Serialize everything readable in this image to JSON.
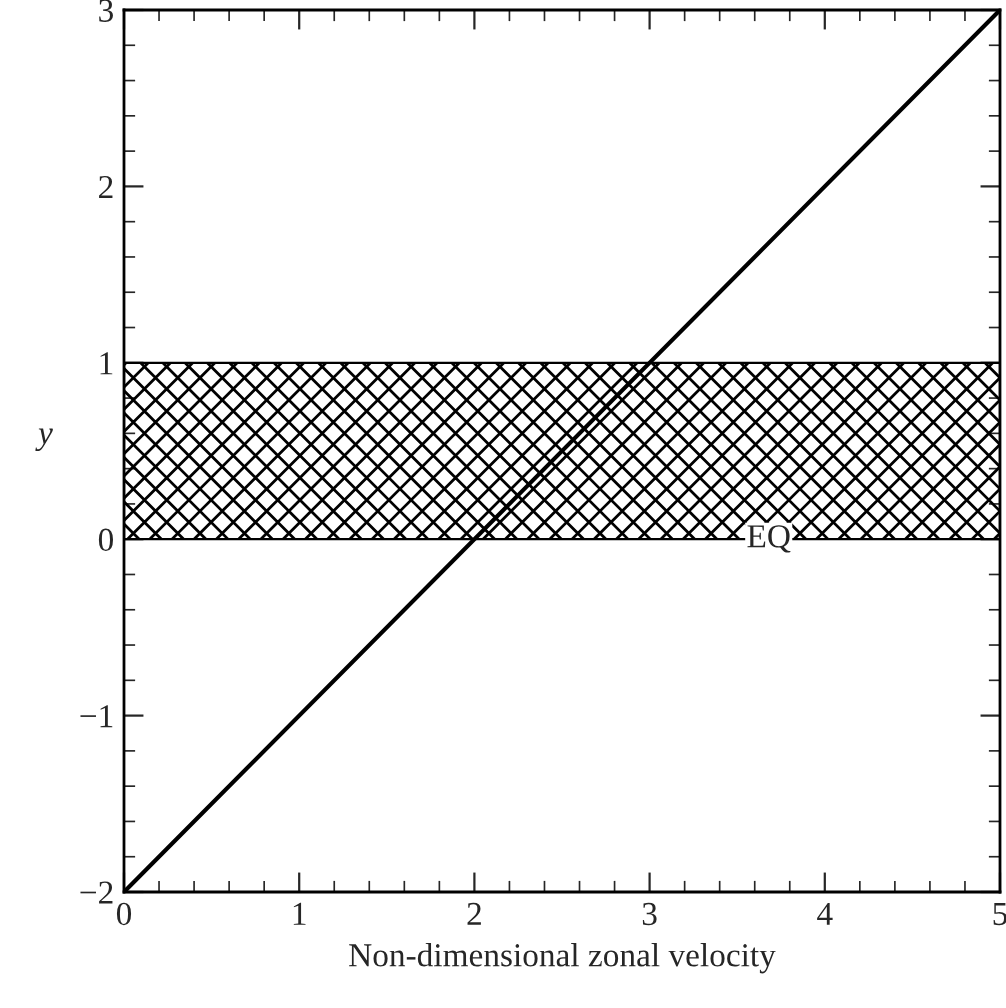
{
  "chart_data": {
    "type": "line",
    "xlabel": "Non-dimensional zonal velocity",
    "ylabel": "y",
    "x": [
      0,
      5
    ],
    "series": [
      {
        "color": "#000000",
        "values": [
          -2,
          3
        ]
      }
    ],
    "xlim": [
      0,
      5
    ],
    "ylim": [
      -2,
      3
    ],
    "xticks": [
      0,
      1,
      2,
      3,
      4,
      5
    ],
    "yticks": [
      {
        "value": -2,
        "label": "−2"
      },
      {
        "value": -1,
        "label": "−1"
      },
      0,
      1,
      2,
      3
    ],
    "bands": [
      {
        "axis": "y",
        "from": 0,
        "to": 1,
        "label": "EQ"
      }
    ],
    "grid": false,
    "legend": false,
    "marker": "none",
    "line_style": "solid"
  }
}
